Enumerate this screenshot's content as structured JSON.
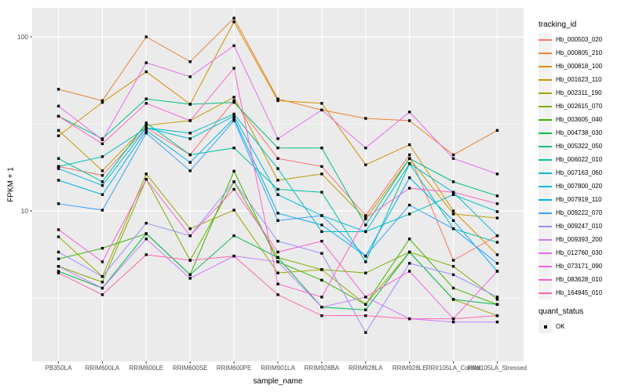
{
  "figure": {
    "y_axis_label": "FPKM + 1",
    "x_axis_label": "sample_name",
    "legend_title": "tracking_id",
    "quant_legend_title": "quant_status",
    "quant_legend_item": "OK",
    "panel_bg": "#EBEBEB",
    "grid_color": "#FFFFFF",
    "tick_label_color": "#4D4D4D",
    "marker_color": "#000000",
    "y_tick_labels": [
      "100",
      "10"
    ]
  },
  "chart_data": {
    "type": "line",
    "title": "",
    "xlabel": "sample_name",
    "ylabel": "FPKM + 1",
    "y_scale": "log10",
    "ylim": [
      1.4,
      150
    ],
    "y_major_ticks": [
      10,
      100
    ],
    "y_minor_gridlines": [
      3.162,
      31.62
    ],
    "grid": true,
    "legend_position": "right",
    "marker": "black-square",
    "quant_status": "OK",
    "categories": [
      "PB350LA",
      "RRIM600LA",
      "RRIM600LE",
      "RRIM600SE",
      "RRIM600PE",
      "RRIM901LA",
      "RRIM928BA",
      "RRIM928LA",
      "RRIM928LE",
      "RRII105LA_Control",
      "RRII105LA_Stressed"
    ],
    "series": [
      {
        "name": "Hb_000503_020",
        "color": "#F8766D",
        "values": [
          18,
          16,
          30,
          21,
          43,
          20,
          18,
          9.4,
          21,
          5.2,
          7.2
        ]
      },
      {
        "name": "Hb_000805_210",
        "color": "#EA8331",
        "values": [
          50,
          43,
          100,
          72,
          128,
          44,
          38,
          34,
          33,
          21,
          29
        ]
      },
      {
        "name": "Hb_000818_100",
        "color": "#D89000",
        "values": [
          27,
          42,
          63,
          41,
          122,
          43,
          41.5,
          18.4,
          24,
          10,
          5.6
        ]
      },
      {
        "name": "Hb_001623_110",
        "color": "#C09B00",
        "values": [
          29,
          17,
          31,
          33,
          45,
          15,
          16.3,
          9,
          20,
          9.6,
          9.1
        ]
      },
      {
        "name": "Hb_002311_190",
        "color": "#A3A500",
        "values": [
          7.1,
          4.2,
          16.3,
          7.9,
          10.1,
          4.4,
          4.6,
          2.9,
          5.8,
          3.1,
          2.5
        ]
      },
      {
        "name": "Hb_002615_070",
        "color": "#7CAE00",
        "values": [
          4.8,
          3.9,
          15.2,
          5.2,
          14.7,
          5.4,
          4.6,
          4.4,
          5.8,
          4.8,
          3.1
        ]
      },
      {
        "name": "Hb_003605_040",
        "color": "#39B600",
        "values": [
          5.3,
          6.1,
          7.4,
          4.3,
          16.9,
          5.1,
          4,
          2.9,
          6.9,
          3.6,
          2.9
        ]
      },
      {
        "name": "Hb_004738_030",
        "color": "#00BB4E",
        "values": [
          4.5,
          3.6,
          7.4,
          4.3,
          7.2,
          5.4,
          2.8,
          2.7,
          5.8,
          3.1,
          2.9
        ]
      },
      {
        "name": "Hb_005322_050",
        "color": "#00BF7D",
        "values": [
          35,
          26,
          44,
          41,
          42,
          23,
          23,
          8.3,
          20,
          14.7,
          12.2
        ]
      },
      {
        "name": "Hb_006022_010",
        "color": "#00C1A3",
        "values": [
          20,
          14.7,
          32,
          21,
          23,
          13.3,
          12.8,
          5.1,
          18.7,
          7.9,
          6.6
        ]
      },
      {
        "name": "Hb_007163_060",
        "color": "#00BFC4",
        "values": [
          18,
          20.5,
          30,
          28,
          36,
          17.5,
          7.6,
          7.6,
          9.6,
          12.4,
          9.9
        ]
      },
      {
        "name": "Hb_007800_020",
        "color": "#00BAE0",
        "values": [
          17.5,
          14,
          30,
          26,
          35,
          12.4,
          9.4,
          7.6,
          18.7,
          12.8,
          7.2
        ]
      },
      {
        "name": "Hb_007919_110",
        "color": "#00B0F6",
        "values": [
          15,
          12.4,
          29,
          19,
          34,
          9.7,
          8.3,
          5.5,
          15.5,
          8.8,
          4.5
        ]
      },
      {
        "name": "Hb_009222_070",
        "color": "#35A2FF",
        "values": [
          11,
          10.1,
          28,
          17,
          33,
          8.8,
          9.4,
          5.5,
          10.8,
          7.9,
          5
        ]
      },
      {
        "name": "Hb_009247_010",
        "color": "#9590FF",
        "values": [
          5.8,
          4.2,
          8.5,
          7.2,
          14.7,
          6.7,
          5.7,
          2,
          5,
          4.3,
          3.2
        ]
      },
      {
        "name": "Hb_009393_200",
        "color": "#C77CFF",
        "values": [
          4.8,
          3.6,
          6.9,
          4.1,
          5.5,
          5.1,
          2.8,
          3.2,
          2.4,
          2.3,
          2.3
        ]
      },
      {
        "name": "Hb_012760_030",
        "color": "#E76BF3",
        "values": [
          40,
          25.6,
          71,
          59,
          89,
          26,
          38,
          23,
          37,
          20,
          16.3
        ]
      },
      {
        "name": "Hb_073171_090",
        "color": "#FA62DB",
        "values": [
          7.8,
          5.1,
          15.2,
          7.2,
          13.3,
          5.8,
          6.7,
          3.2,
          4.5,
          2.4,
          4.5
        ]
      },
      {
        "name": "Hb_083628_010",
        "color": "#FF61C9",
        "values": [
          35,
          24.3,
          41.5,
          33,
          66,
          3.8,
          3.2,
          9.1,
          13.5,
          12.8,
          11
        ]
      },
      {
        "name": "Hb_164945_010",
        "color": "#FF65B0",
        "values": [
          4.4,
          3.3,
          5.6,
          5.2,
          5.5,
          3.3,
          2.5,
          2.5,
          2.4,
          2.4,
          2.5
        ]
      }
    ]
  }
}
